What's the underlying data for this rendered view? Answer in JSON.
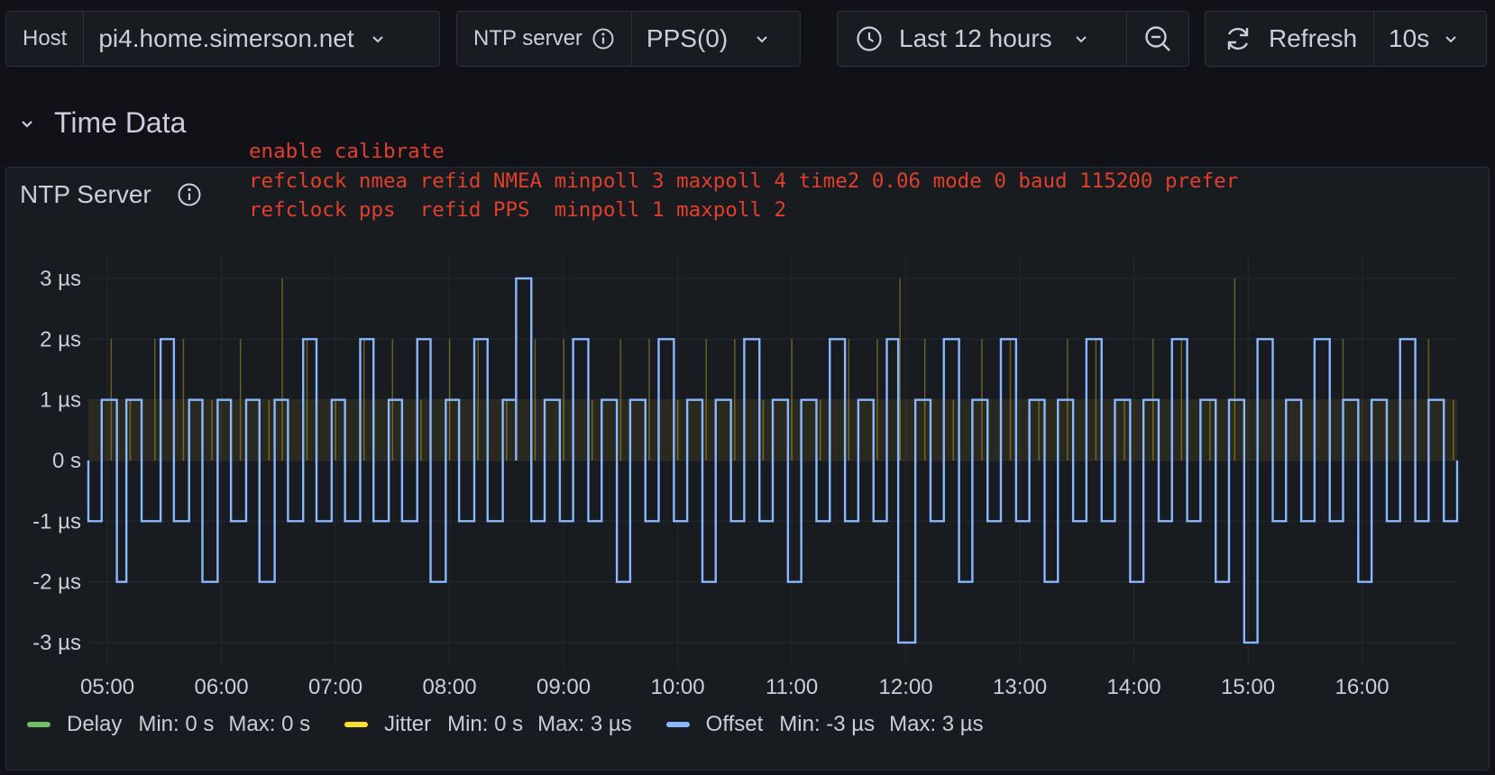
{
  "toolbar": {
    "host": {
      "label": "Host",
      "value": "pi4.home.simerson.net"
    },
    "ntp_server": {
      "label": "NTP server",
      "value": "PPS(0)"
    },
    "time_range": {
      "label": "Last 12 hours"
    },
    "refresh": {
      "label": "Refresh",
      "interval": "10s"
    }
  },
  "row": {
    "title": "Time Data"
  },
  "panel": {
    "title": "NTP Server",
    "note": [
      "enable calibrate",
      "refclock nmea refid NMEA minpoll 3 maxpoll 4 time2 0.06 mode 0 baud 115200 prefer",
      "refclock pps  refid PPS  minpoll 1 maxpoll 2"
    ]
  },
  "legend": [
    {
      "name": "Delay",
      "min": "Min: 0 s",
      "max": "Max: 0 s",
      "color": "#73bf69"
    },
    {
      "name": "Jitter",
      "min": "Min: 0 s",
      "max": "Max: 3 µs",
      "color": "#fade2a"
    },
    {
      "name": "Offset",
      "min": "Min: -3 µs",
      "max": "Max: 3 µs",
      "color": "#8ab8ff"
    }
  ],
  "chart_data": {
    "type": "line",
    "y_ticks": [
      {
        "label": "3 µs",
        "value": 3
      },
      {
        "label": "2 µs",
        "value": 2
      },
      {
        "label": "1 µs",
        "value": 1
      },
      {
        "label": "0 s",
        "value": 0
      },
      {
        "label": "-1 µs",
        "value": -1
      },
      {
        "label": "-2 µs",
        "value": -2
      },
      {
        "label": "-3 µs",
        "value": -3
      }
    ],
    "x_ticks": [
      "05:00",
      "06:00",
      "07:00",
      "08:00",
      "09:00",
      "10:00",
      "11:00",
      "12:00",
      "13:00",
      "14:00",
      "15:00",
      "16:00"
    ],
    "ylim": [
      -3.4,
      3.4
    ],
    "xlim": [
      "04:50",
      "16:50"
    ],
    "grid": true,
    "series": [
      {
        "name": "Offset",
        "color": "#8ab8ff",
        "times": [
          "04:50",
          "04:57",
          "05:05",
          "05:10",
          "05:18",
          "05:28",
          "05:35",
          "05:43",
          "05:50",
          "05:58",
          "06:05",
          "06:13",
          "06:20",
          "06:28",
          "06:35",
          "06:43",
          "06:50",
          "06:58",
          "07:05",
          "07:13",
          "07:20",
          "07:28",
          "07:35",
          "07:43",
          "07:50",
          "07:58",
          "08:05",
          "08:13",
          "08:20",
          "08:28",
          "08:35",
          "08:43",
          "08:50",
          "08:58",
          "09:05",
          "09:13",
          "09:20",
          "09:28",
          "09:35",
          "09:43",
          "09:50",
          "09:58",
          "10:05",
          "10:13",
          "10:20",
          "10:28",
          "10:35",
          "10:43",
          "10:50",
          "10:58",
          "11:05",
          "11:13",
          "11:20",
          "11:28",
          "11:35",
          "11:43",
          "11:50",
          "11:56",
          "12:05",
          "12:13",
          "12:20",
          "12:28",
          "12:35",
          "12:43",
          "12:50",
          "12:58",
          "13:05",
          "13:13",
          "13:20",
          "13:28",
          "13:35",
          "13:43",
          "13:50",
          "13:58",
          "14:05",
          "14:13",
          "14:20",
          "14:28",
          "14:35",
          "14:43",
          "14:50",
          "14:58",
          "15:05",
          "15:13",
          "15:20",
          "15:28",
          "15:35",
          "15:43",
          "15:50",
          "15:58",
          "16:05",
          "16:13",
          "16:20",
          "16:28",
          "16:35",
          "16:43",
          "16:50"
        ],
        "values": [
          -1,
          1,
          -2,
          1,
          -1,
          2,
          -1,
          1,
          -2,
          1,
          -1,
          1,
          -2,
          1,
          -1,
          2,
          -1,
          1,
          -1,
          2,
          -1,
          1,
          -1,
          2,
          -2,
          1,
          -1,
          2,
          -1,
          1,
          3,
          -1,
          1,
          -1,
          2,
          -1,
          1,
          -2,
          1,
          -1,
          2,
          -1,
          1,
          -2,
          1,
          -1,
          2,
          -1,
          1,
          -2,
          1,
          -1,
          2,
          -1,
          1,
          -1,
          2,
          -3,
          1,
          -1,
          2,
          -2,
          1,
          -1,
          2,
          -1,
          1,
          -2,
          1,
          -1,
          2,
          -1,
          1,
          -2,
          1,
          -1,
          2,
          -1,
          1,
          -2,
          1,
          -3,
          2,
          -1,
          1,
          -1,
          2,
          -1,
          1,
          -2,
          1,
          -1,
          2,
          -1,
          1,
          -1,
          0
        ]
      },
      {
        "name": "Jitter",
        "color": "#fade2a",
        "times": [
          "05:02",
          "05:12",
          "05:25",
          "05:40",
          "05:55",
          "06:10",
          "06:25",
          "06:32",
          "06:45",
          "07:00",
          "07:15",
          "07:30",
          "07:45",
          "08:00",
          "08:15",
          "08:30",
          "08:45",
          "09:00",
          "09:15",
          "09:30",
          "09:45",
          "10:00",
          "10:15",
          "10:30",
          "10:45",
          "11:00",
          "11:15",
          "11:30",
          "11:45",
          "11:57",
          "12:10",
          "12:25",
          "12:40",
          "12:55",
          "13:10",
          "13:25",
          "13:40",
          "13:55",
          "14:10",
          "14:25",
          "14:40",
          "14:53",
          "15:05",
          "15:20",
          "15:35",
          "15:50",
          "16:05",
          "16:20",
          "16:35",
          "16:48"
        ],
        "values": [
          2,
          1,
          2,
          2,
          1,
          2,
          1,
          3,
          2,
          1,
          2,
          2,
          1,
          2,
          2,
          1,
          2,
          2,
          1,
          2,
          2,
          1,
          2,
          2,
          1,
          2,
          1,
          2,
          2,
          3,
          2,
          1,
          2,
          2,
          1,
          2,
          2,
          1,
          2,
          2,
          1,
          3,
          2,
          1,
          2,
          2,
          1,
          2,
          2,
          1
        ]
      }
    ]
  }
}
